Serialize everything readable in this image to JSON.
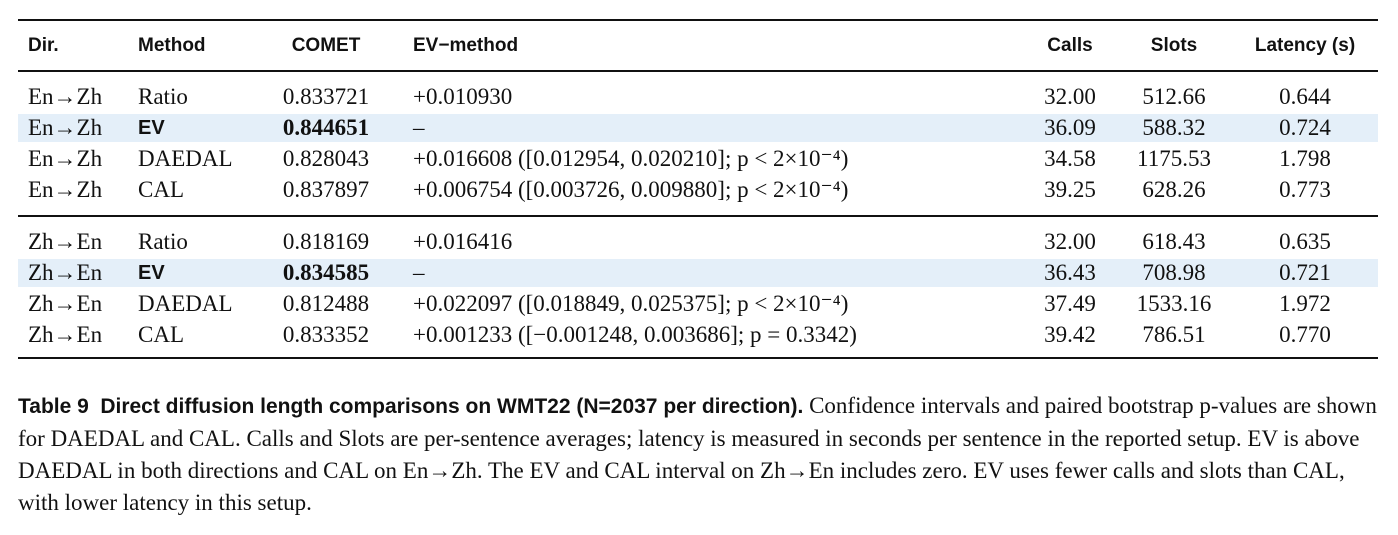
{
  "table": {
    "header": [
      "Dir.",
      "Method",
      "COMET",
      "EV−method",
      "Calls",
      "Slots",
      "Latency (s)"
    ],
    "highlight_color": "#e4eff9",
    "groups": [
      {
        "highlighted": [
          1
        ],
        "bold": [
          1
        ],
        "rows": [
          [
            "En→Zh",
            "Ratio",
            "0.833721",
            "+0.010930",
            "32.00",
            "512.66",
            "0.644"
          ],
          [
            "En→Zh",
            "EV",
            "0.844651",
            "–",
            "36.09",
            "588.32",
            "0.724"
          ],
          [
            "En→Zh",
            "DAEDAL",
            "0.828043",
            "+0.016608 ([0.012954, 0.020210]; p < 2×10⁻⁴)",
            "34.58",
            "1175.53",
            "1.798"
          ],
          [
            "En→Zh",
            "CAL",
            "0.837897",
            "+0.006754 ([0.003726, 0.009880]; p < 2×10⁻⁴)",
            "39.25",
            "628.26",
            "0.773"
          ]
        ]
      },
      {
        "highlighted": [
          1
        ],
        "bold": [
          1
        ],
        "rows": [
          [
            "Zh→En",
            "Ratio",
            "0.818169",
            "+0.016416",
            "32.00",
            "618.43",
            "0.635"
          ],
          [
            "Zh→En",
            "EV",
            "0.834585",
            "–",
            "36.43",
            "708.98",
            "0.721"
          ],
          [
            "Zh→En",
            "DAEDAL",
            "0.812488",
            "+0.022097 ([0.018849, 0.025375]; p < 2×10⁻⁴)",
            "37.49",
            "1533.16",
            "1.972"
          ],
          [
            "Zh→En",
            "CAL",
            "0.833352",
            "+0.001233 ([−0.001248, 0.003686]; p = 0.3342)",
            "39.42",
            "786.51",
            "0.770"
          ]
        ]
      }
    ]
  },
  "caption": {
    "label": "Table 9",
    "title": "Direct diffusion length comparisons on WMT22 (N=2037 per direction).",
    "text": "Confidence intervals and paired bootstrap p-values are shown for DAEDAL and CAL. Calls and Slots are per-sentence averages; latency is measured in seconds per sentence in the reported setup. EV is above DAEDAL in both directions and CAL on En→Zh. The EV and CAL interval on Zh→En includes zero. EV uses fewer calls and slots than CAL, with lower latency in this setup."
  }
}
